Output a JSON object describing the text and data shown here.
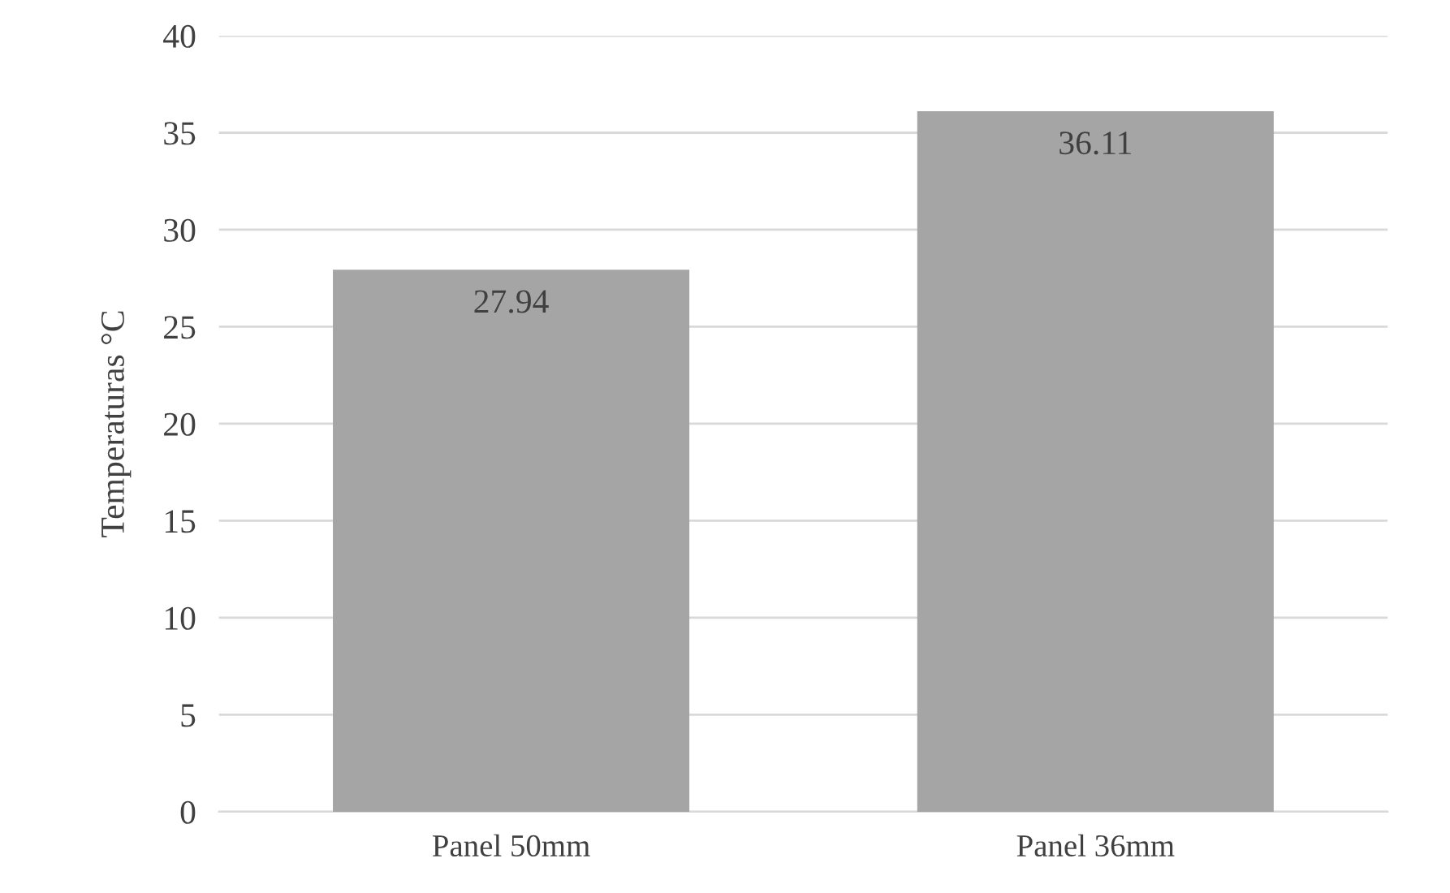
{
  "chart_data": {
    "type": "bar",
    "ylabel": "Temperaturas °C",
    "categories": [
      "Panel 50mm",
      "Panel 36mm"
    ],
    "series": [
      {
        "color": "#a5a5a5",
        "values": [
          27.94,
          36.11
        ]
      }
    ],
    "ylim": [
      0,
      40
    ],
    "yticks": [
      0,
      5,
      10,
      15,
      20,
      25,
      30,
      35,
      40
    ],
    "grid": "y",
    "data_labels": true,
    "legend": false
  }
}
